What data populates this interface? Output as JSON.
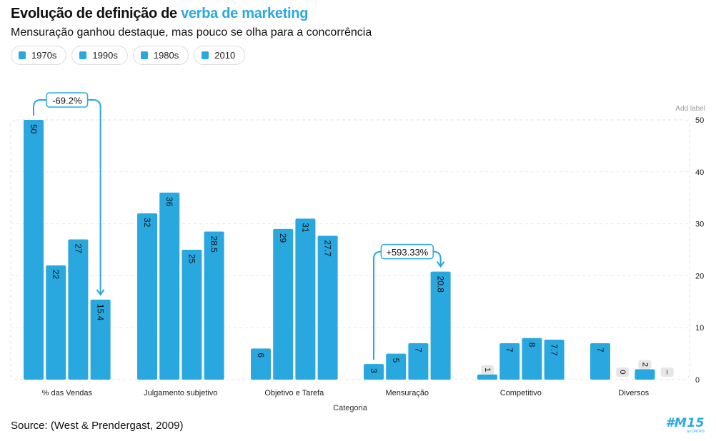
{
  "title_prefix": "Evolução de definição de ",
  "title_highlight": "verba de marketing",
  "subtitle": "Mensuração ganhou destaque, mas pouco se olha para a concorrência",
  "legend": [
    "1970s",
    "1990s",
    "1980s",
    "2010"
  ],
  "add_label": "Add label",
  "source": "Source: (West & Prendergast, 2009)",
  "logo": {
    "text": "#M15",
    "sub": "by DROPS"
  },
  "colors": {
    "bar": "#29a8e0",
    "zero_badge": "#e6e6e6",
    "annotation": "#29a8e0"
  },
  "chart_data": {
    "type": "bar",
    "title": "Evolução de definição de verba de marketing",
    "xlabel": "Categoria",
    "ylabel": "",
    "ylim": [
      0,
      50
    ],
    "yticks": [
      0,
      10,
      20,
      30,
      40,
      50
    ],
    "categories": [
      "% das Vendas",
      "Julgamento subjetivo",
      "Objetivo e Tarefa",
      "Mensuração",
      "Competitivo",
      "Diversos"
    ],
    "series": [
      {
        "name": "1970s",
        "values": [
          50,
          32,
          6,
          3,
          1,
          7
        ],
        "labels": [
          "50",
          "32",
          "6",
          "3",
          "1",
          "7"
        ]
      },
      {
        "name": "1990s",
        "values": [
          22,
          36,
          29,
          5,
          7,
          0
        ],
        "labels": [
          "22",
          "36",
          "29",
          "5",
          "7",
          "0"
        ]
      },
      {
        "name": "1980s",
        "values": [
          27,
          25,
          31,
          7,
          8,
          2
        ],
        "labels": [
          "27",
          "25",
          "31",
          "7",
          "8",
          "2"
        ]
      },
      {
        "name": "2010",
        "values": [
          15.4,
          28.5,
          27.7,
          20.8,
          7.7,
          null
        ],
        "labels": [
          "15.4",
          "28.5",
          "27.7",
          "20.8",
          "7.7",
          "–"
        ]
      }
    ],
    "annotations": [
      {
        "text": "-69.2%",
        "category": 0,
        "from_series": 0,
        "to_series": 3
      },
      {
        "text": "+593.33%",
        "category": 3,
        "from_series": 0,
        "to_series": 3
      }
    ]
  }
}
